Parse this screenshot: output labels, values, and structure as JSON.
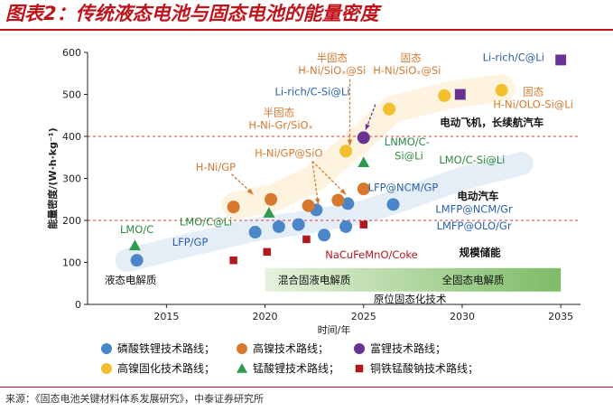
{
  "title": "图表2：传统液态电池与固态电池的能量密度",
  "source": "来源：《固态电池关键材料体系发展研究》，中泰证券研究所",
  "colors": {
    "brand_red": "#c0141c",
    "blue": "#4a86c8",
    "orange": "#d6792e",
    "purple": "#6a3393",
    "yellow": "#f2c02e",
    "green": "#2e9a4e",
    "darkred": "#b1191e",
    "label_blue": "#2a5fb0",
    "label_orange": "#b25a16",
    "label_green": "#2b8a3e",
    "stage_green": "#7dbb66"
  },
  "chart_data": {
    "type": "scatter",
    "xlabel": "时间/年",
    "ylabel": "能量密度/(W·h·kg⁻¹)",
    "xlim": [
      2011,
      2036
    ],
    "ylim": [
      0,
      600
    ],
    "xticks": [
      2015,
      2020,
      2025,
      2030,
      2035
    ],
    "yticks": [
      0,
      100,
      200,
      300,
      400,
      500,
      600
    ],
    "series": [
      {
        "name": "磷酸铁锂技术路线",
        "marker": "circle",
        "color": "blue",
        "points": [
          [
            2013.5,
            105
          ],
          [
            2019.5,
            172
          ],
          [
            2020.7,
            185
          ],
          [
            2021.7,
            190
          ],
          [
            2023.0,
            165
          ],
          [
            2022.6,
            225
          ],
          [
            2024.2,
            240
          ],
          [
            2024.1,
            185
          ],
          [
            2026.5,
            238
          ]
        ]
      },
      {
        "name": "高镍技术路线",
        "marker": "circle",
        "color": "orange",
        "points": [
          [
            2018.4,
            232
          ],
          [
            2020.3,
            250
          ],
          [
            2022.2,
            235
          ],
          [
            2023.7,
            248
          ],
          [
            2025.0,
            275
          ]
        ]
      },
      {
        "name": "富锂技术路线",
        "marker": "circle",
        "color": "purple",
        "points": [
          [
            2025.0,
            397
          ]
        ]
      },
      {
        "name": "高镍固化技术路线",
        "marker": "circle",
        "color": "yellow",
        "points": [
          [
            2024.1,
            365
          ],
          [
            2026.3,
            465
          ],
          [
            2029.1,
            497
          ],
          [
            2032.0,
            510
          ]
        ]
      },
      {
        "name": "锰酸锂技术路线",
        "marker": "triangle",
        "color": "green",
        "points": [
          [
            2013.4,
            140
          ],
          [
            2020.2,
            218
          ],
          [
            2025.0,
            338
          ]
        ]
      },
      {
        "name": "铜铁锰酸钠技术路线",
        "marker": "square",
        "color": "darkred",
        "points": [
          [
            2018.4,
            105
          ],
          [
            2020.1,
            125
          ],
          [
            2022.1,
            155
          ],
          [
            2025.0,
            190
          ]
        ]
      },
      {
        "name": "",
        "marker": "square",
        "color": "purple",
        "points": [
          [
            2029.9,
            500
          ],
          [
            2035.0,
            582
          ]
        ]
      }
    ],
    "reference_lines": [
      {
        "y": 400,
        "label": "电动飞机，长续航汽车"
      },
      {
        "y": 200,
        "label": "电动汽车"
      }
    ],
    "annotations": [
      {
        "text": "半固态",
        "x": 2023.4,
        "y": 578,
        "color": "orange"
      },
      {
        "text": "H-Ni/SiOₓ@Si",
        "x": 2023.4,
        "y": 548,
        "color": "orange"
      },
      {
        "text": "固态",
        "x": 2027.4,
        "y": 578,
        "color": "orange"
      },
      {
        "text": "H-Ni/SiOₓ@Si",
        "x": 2027.2,
        "y": 548,
        "color": "orange"
      },
      {
        "text": "Li-rich/C@Li",
        "x": 2032.6,
        "y": 580,
        "color": "label_blue"
      },
      {
        "text": "Li-rich/C-Si@Li",
        "x": 2022.4,
        "y": 498,
        "color": "label_blue"
      },
      {
        "text": "固态",
        "x": 2033.6,
        "y": 498,
        "color": "orange"
      },
      {
        "text": "H-Ni/OLO-Si@Li",
        "x": 2033.6,
        "y": 468,
        "color": "orange"
      },
      {
        "text": "半固态",
        "x": 2020.7,
        "y": 448,
        "color": "orange"
      },
      {
        "text": "H-Ni-Gr/SiOₓ",
        "x": 2020.8,
        "y": 418,
        "color": "orange"
      },
      {
        "text": "LNMO/C-",
        "x": 2027.2,
        "y": 378,
        "color": "label_green"
      },
      {
        "text": "Si@Li",
        "x": 2027.3,
        "y": 345,
        "color": "label_green"
      },
      {
        "text": "H-Ni/GP@SiO",
        "x": 2021.2,
        "y": 352,
        "color": "orange"
      },
      {
        "text": "H-Ni/GP",
        "x": 2017.5,
        "y": 318,
        "color": "orange"
      },
      {
        "text": "LMO/C-Si@Li",
        "x": 2030.5,
        "y": 335,
        "color": "label_green"
      },
      {
        "text": "LFP@NCM/GP",
        "x": 2027.0,
        "y": 270,
        "color": "label_blue"
      },
      {
        "text": "LMO/C",
        "x": 2013.5,
        "y": 170,
        "color": "label_green"
      },
      {
        "text": "LMO/C@Li",
        "x": 2017.0,
        "y": 188,
        "color": "label_green"
      },
      {
        "text": "LFP/GP",
        "x": 2016.2,
        "y": 140,
        "color": "label_blue"
      },
      {
        "text": "LMFP@NCM/Gr",
        "x": 2030.6,
        "y": 218,
        "color": "label_blue"
      },
      {
        "text": "LMFP@OLO/Gr",
        "x": 2030.6,
        "y": 178,
        "color": "label_blue"
      },
      {
        "text": "NaCuFeMnO/Coke",
        "x": 2025.4,
        "y": 110,
        "color": "darkred"
      },
      {
        "text": "规模储能",
        "x": 2030.9,
        "y": 115,
        "color": "black"
      },
      {
        "text": "电动汽车",
        "x": 2030.8,
        "y": 250,
        "color": "black"
      },
      {
        "text": "电动飞机，长续航汽车",
        "x": 2031.5,
        "y": 425,
        "color": "black"
      }
    ],
    "stages": [
      {
        "label": "液态电解质",
        "x_from": 2011.5,
        "x_to": 2019.8
      },
      {
        "label": "混合固液电解质",
        "x_from": 2020.0,
        "x_to": 2025.0
      },
      {
        "label": "全固态电解质",
        "x_from": 2025.0,
        "x_to": 2035.0
      },
      {
        "label": "原位固态化技术",
        "x_from": 2025.2,
        "x_to": 2029.5
      }
    ]
  },
  "legend": [
    {
      "label": "磷酸铁锂技术路线；",
      "marker": "circle",
      "color": "blue"
    },
    {
      "label": "高镍技术路线；",
      "marker": "circle",
      "color": "orange"
    },
    {
      "label": "富锂技术路线；",
      "marker": "circle",
      "color": "purple"
    },
    {
      "label": "高镍固化技术路线；",
      "marker": "circle",
      "color": "yellow"
    },
    {
      "label": "锰酸锂技术路线；",
      "marker": "triangle",
      "color": "green"
    },
    {
      "label": "铜铁锰酸钠技术路线；",
      "marker": "square",
      "color": "darkred"
    }
  ]
}
